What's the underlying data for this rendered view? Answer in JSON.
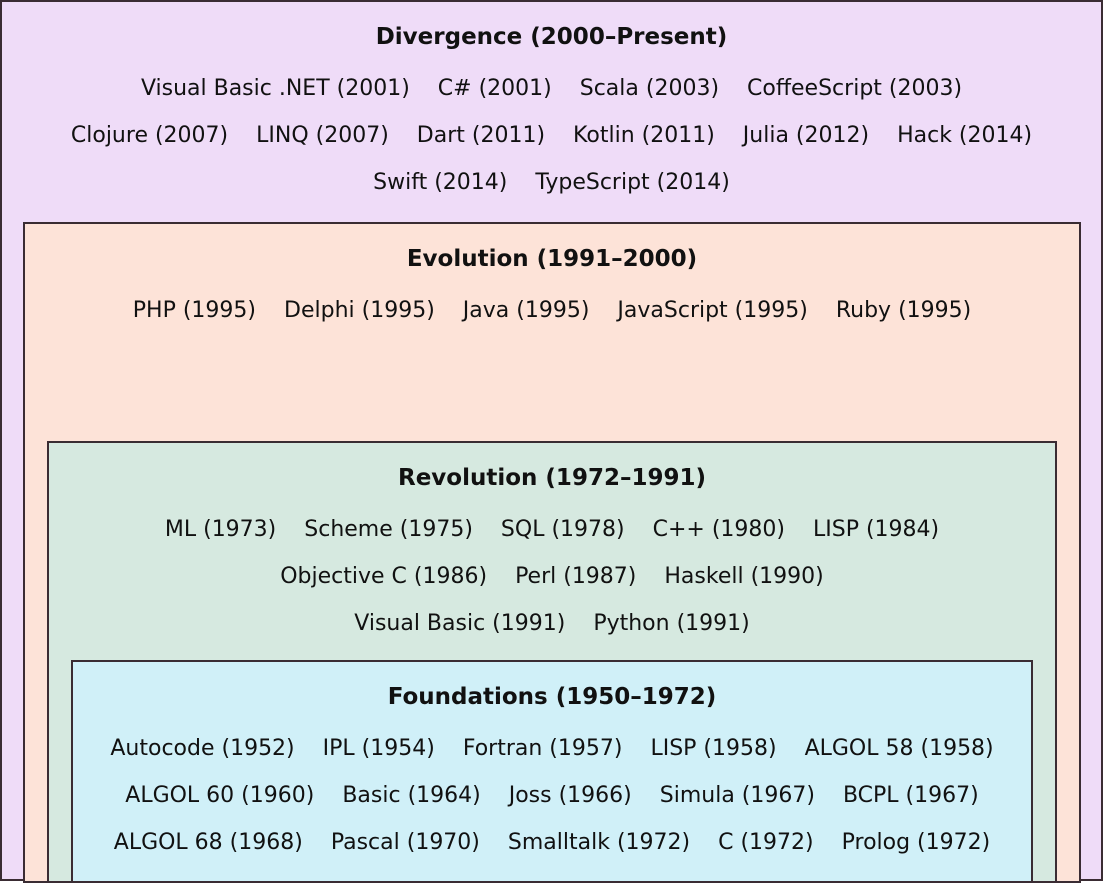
{
  "colors": {
    "divergence": "#efdcf8",
    "evolution": "#fde3d8",
    "revolution": "#d6e9e0",
    "foundations": "#d0f0f8",
    "border": "#3a2c33"
  },
  "divergence": {
    "title": "Divergence (2000–Present)",
    "rows": [
      [
        "Visual Basic .NET (2001)",
        "C# (2001)",
        "Scala (2003)",
        "CoffeeScript (2003)"
      ],
      [
        "Clojure (2007)",
        "LINQ (2007)",
        "Dart (2011)",
        "Kotlin (2011)",
        "Julia (2012)",
        "Hack (2014)"
      ],
      [
        "Swift (2014)",
        "TypeScript (2014)"
      ]
    ]
  },
  "evolution": {
    "title": "Evolution (1991–2000)",
    "rows": [
      [
        "PHP (1995)",
        "Delphi (1995)",
        "Java (1995)",
        "JavaScript (1995)",
        "Ruby (1995)"
      ]
    ]
  },
  "revolution": {
    "title": "Revolution (1972–1991)",
    "rows": [
      [
        "ML (1973)",
        "Scheme (1975)",
        "SQL (1978)",
        "C++ (1980)",
        "LISP (1984)"
      ],
      [
        "Objective C (1986)",
        "Perl (1987)",
        "Haskell (1990)"
      ],
      [
        "Visual Basic (1991)",
        "Python (1991)"
      ]
    ]
  },
  "foundations": {
    "title": "Foundations (1950–1972)",
    "rows": [
      [
        "Autocode (1952)",
        "IPL (1954)",
        "Fortran (1957)",
        "LISP (1958)",
        "ALGOL 58 (1958)"
      ],
      [
        "ALGOL 60 (1960)",
        "Basic (1964)",
        "Joss (1966)",
        "Simula (1967)",
        "BCPL (1967)"
      ],
      [
        "ALGOL 68 (1968)",
        "Pascal (1970)",
        "Smalltalk (1972)",
        "C (1972)",
        "Prolog (1972)"
      ]
    ]
  }
}
